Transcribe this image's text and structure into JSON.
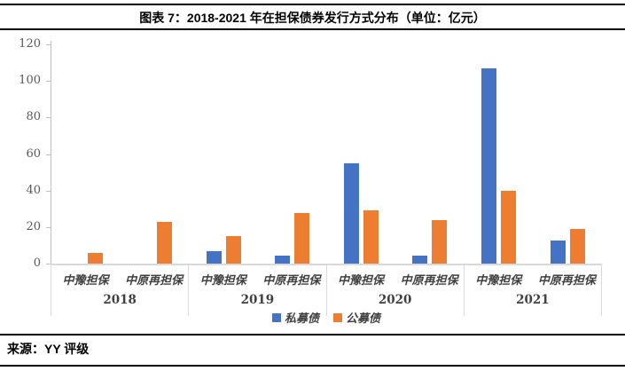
{
  "header": {
    "title": "图表 7：2018-2021 年在担保债券发行方式分布（单位：亿元）"
  },
  "footer": {
    "source": "来源：YY 评级"
  },
  "colors": {
    "series_private": "#4472C4",
    "series_public": "#ED7D31",
    "axis_line": "#BFBFBF",
    "divider": "#D9D9D9",
    "rule": "#000000"
  },
  "chart_data": {
    "type": "bar",
    "title": "图表 7：2018-2021 年在担保债券发行方式分布（单位：亿元）",
    "unit": "亿元",
    "ylim": [
      0,
      120
    ],
    "yticks": [
      0,
      20,
      40,
      60,
      80,
      100,
      120
    ],
    "grid": false,
    "legend_position": "bottom",
    "groups": [
      {
        "year": "2018",
        "categories": [
          "中豫担保",
          "中原再担保"
        ]
      },
      {
        "year": "2019",
        "categories": [
          "中豫担保",
          "中原再担保"
        ]
      },
      {
        "year": "2020",
        "categories": [
          "中豫担保",
          "中原再担保"
        ]
      },
      {
        "year": "2021",
        "categories": [
          "中豫担保",
          "中原再担保"
        ]
      }
    ],
    "category_slots": [
      "2018-中豫担保",
      "2018-中原再担保",
      "2019-中豫担保",
      "2019-中原再担保",
      "2020-中豫担保",
      "2020-中原再担保",
      "2021-中豫担保",
      "2021-中原再担保"
    ],
    "series": [
      {
        "name": "私募债",
        "color": "#4472C4",
        "values": [
          0,
          0,
          7,
          4.5,
          55,
          4.5,
          107,
          12.5
        ]
      },
      {
        "name": "公募债",
        "color": "#ED7D31",
        "values": [
          6,
          23,
          15,
          27.5,
          29,
          24,
          40,
          19
        ]
      }
    ]
  }
}
